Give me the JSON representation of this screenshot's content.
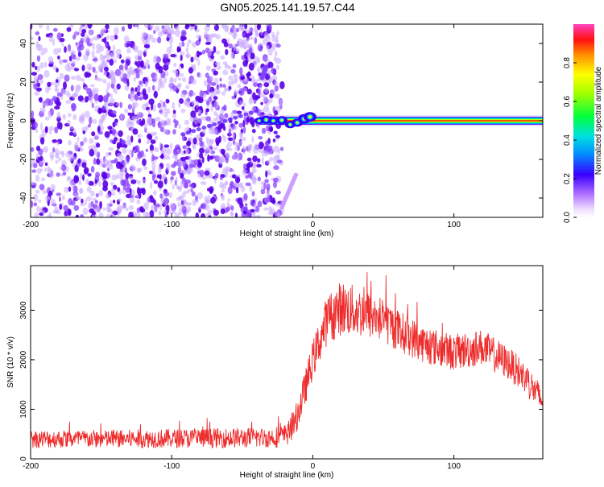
{
  "chart_data": [
    {
      "type": "heatmap",
      "title": "GN05.2025.141.19.57.C44",
      "xlabel": "Height of straight line (km)",
      "ylabel": "Frequency (Hz)",
      "xlim": [
        -200,
        163
      ],
      "ylim": [
        -50,
        50
      ],
      "xticks": [
        -200,
        -100,
        0,
        100
      ],
      "yticks": [
        -40,
        -20,
        0,
        20,
        40
      ],
      "grid": false,
      "colorbar": {
        "label": "Normalized spectral amplitude",
        "range": [
          0,
          1
        ],
        "ticks": [
          "0.0",
          "0.2",
          "0.4",
          "0.6",
          "0.8"
        ],
        "tick_values": [
          0.0,
          0.2,
          0.4,
          0.6,
          0.8
        ]
      },
      "features": [
        {
          "kind": "noise",
          "x_range": [
            -200,
            -30
          ],
          "freq_range": [
            -50,
            50
          ],
          "amplitude": 0.15
        },
        {
          "kind": "carrier",
          "x_range": [
            -40,
            163
          ],
          "freq": 0,
          "amplitude": 0.95
        },
        {
          "kind": "streak",
          "x_from": -92,
          "f_from": -7,
          "x_to": -40,
          "f_to": 5,
          "amplitude": 0.18
        },
        {
          "kind": "streak",
          "x_from": -36,
          "f_from": 22,
          "x_to": -33,
          "f_to": 28,
          "amplitude": 0.16
        },
        {
          "kind": "streak",
          "x_from": -12,
          "f_from": -28,
          "x_to": -22,
          "f_to": -45,
          "amplitude": 0.08
        }
      ],
      "colors": {
        "low": "#e6d2ff",
        "mid": "#5a00e6",
        "carrier_core": "#e60000"
      }
    },
    {
      "type": "line",
      "xlabel": "Height of straight line (km)",
      "ylabel": "SNR (10 * v/v)",
      "xlim": [
        -200,
        163
      ],
      "ylim": [
        0,
        3900
      ],
      "xticks": [
        -200,
        -100,
        0,
        100
      ],
      "yticks": [
        0,
        1000,
        2000,
        3000
      ],
      "grid": false,
      "line_color": "#ee2b2b",
      "series": [
        {
          "x": [
            -200,
            -150,
            -100,
            -60,
            -30,
            -20,
            -15,
            -10,
            0,
            10,
            20,
            30,
            40,
            50,
            60,
            80,
            100,
            110,
            120,
            140,
            150,
            163
          ],
          "values": [
            400,
            400,
            410,
            420,
            430,
            460,
            600,
            950,
            2000,
            2800,
            3050,
            2980,
            2900,
            2800,
            2600,
            2300,
            2150,
            2200,
            2250,
            1900,
            1650,
            1150
          ],
          "noise": [
            180,
            180,
            190,
            200,
            200,
            230,
            250,
            320,
            380,
            500,
            550,
            520,
            480,
            450,
            420,
            380,
            360,
            370,
            370,
            330,
            330,
            300
          ]
        }
      ]
    }
  ]
}
